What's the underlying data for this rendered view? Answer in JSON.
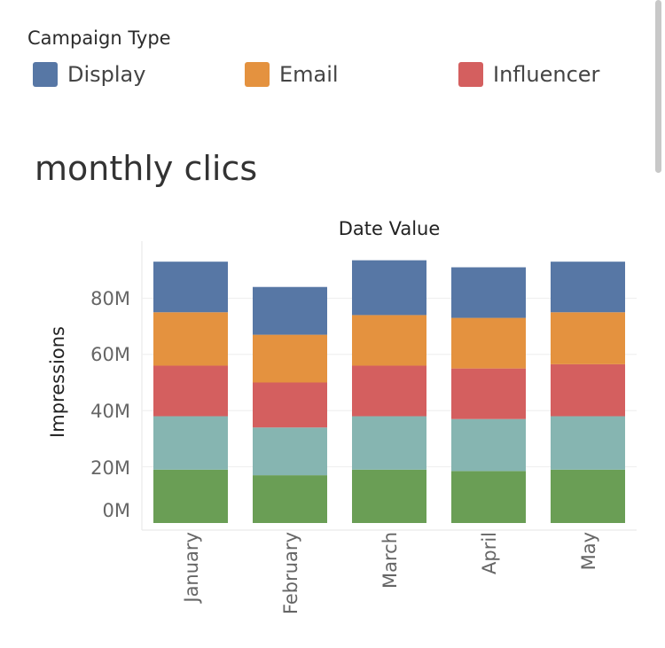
{
  "legend": {
    "title": "Campaign Type",
    "items": [
      {
        "label": "Display",
        "color": "#5777a5"
      },
      {
        "label": "Email",
        "color": "#e4923f"
      },
      {
        "label": "Influencer",
        "color": "#d45f5f"
      }
    ]
  },
  "chart_data": {
    "type": "bar",
    "stacked": true,
    "title": "monthly clics",
    "column_header": "Date Value",
    "ylabel": "Impressions",
    "xlabel": "",
    "categories": [
      "January",
      "February",
      "March",
      "April",
      "May"
    ],
    "y_ticks": [
      "0M",
      "20M",
      "40M",
      "60M",
      "80M"
    ],
    "ylim": [
      0,
      96
    ],
    "series": [
      {
        "color": "#6a9e55",
        "values": [
          19,
          17,
          19,
          18.5,
          19
        ]
      },
      {
        "color": "#86b5b1",
        "values": [
          19,
          17,
          19,
          18.5,
          19
        ]
      },
      {
        "name": "Influencer",
        "color": "#d45f5f",
        "values": [
          18,
          16,
          18,
          18,
          18.5
        ]
      },
      {
        "name": "Email",
        "color": "#e4923f",
        "values": [
          19,
          17,
          18,
          18,
          18.5
        ]
      },
      {
        "name": "Display",
        "color": "#5777a5",
        "values": [
          18,
          17,
          19.5,
          18,
          18
        ]
      }
    ]
  }
}
